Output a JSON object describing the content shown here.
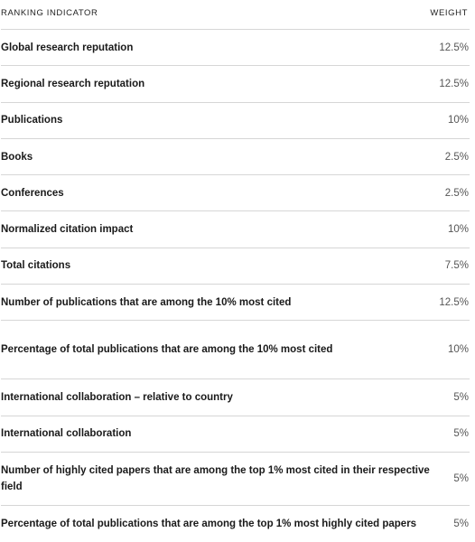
{
  "header": {
    "indicator_label": "RANKING INDICATOR",
    "weight_label": "WEIGHT"
  },
  "rows": [
    {
      "indicator": "Global research reputation",
      "weight": "12.5%"
    },
    {
      "indicator": "Regional research reputation",
      "weight": "12.5%"
    },
    {
      "indicator": "Publications",
      "weight": "10%"
    },
    {
      "indicator": "Books",
      "weight": "2.5%"
    },
    {
      "indicator": "Conferences",
      "weight": "2.5%"
    },
    {
      "indicator": "Normalized citation impact",
      "weight": "10%"
    },
    {
      "indicator": "Total citations",
      "weight": "7.5%"
    },
    {
      "indicator": "Number of publications that are among the 10% most cited",
      "weight": "12.5%"
    },
    {
      "indicator": "Percentage of total publications that are among the 10% most cited",
      "weight": "10%"
    },
    {
      "indicator": "International collaboration – relative to country",
      "weight": "5%"
    },
    {
      "indicator": "International collaboration",
      "weight": "5%"
    },
    {
      "indicator": "Number of highly cited papers that are among the top 1% most cited in their respective field",
      "weight": "5%"
    },
    {
      "indicator": "Percentage of total publications that are among the top 1% most highly cited papers",
      "weight": "5%"
    }
  ]
}
